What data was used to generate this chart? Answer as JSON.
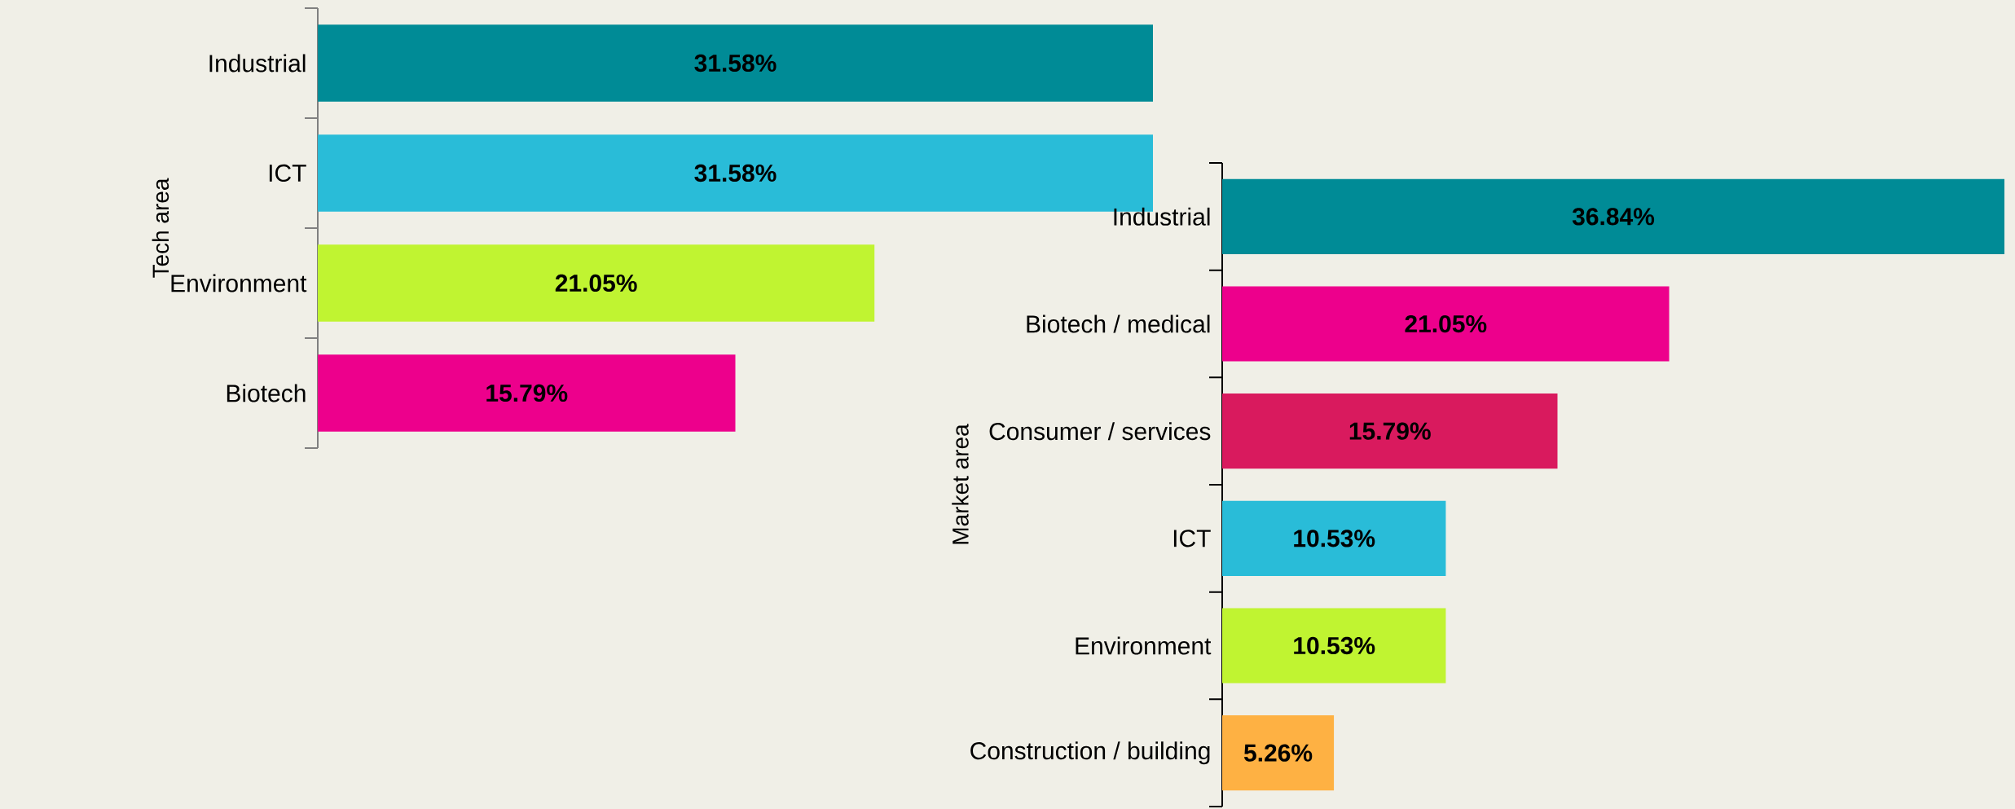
{
  "chart_data": [
    {
      "type": "bar",
      "orientation": "horizontal",
      "ylabel": "Tech area",
      "categories": [
        "Industrial",
        "ICT",
        "Environment",
        "Biotech"
      ],
      "values": [
        31.58,
        31.58,
        21.05,
        15.79
      ],
      "value_labels": [
        "31.58%",
        "31.58%",
        "21.05%",
        "15.79%"
      ],
      "colors": [
        "#008b96",
        "#29bcd8",
        "#c0f431",
        "#ed008c"
      ],
      "tick_labels": "y"
    },
    {
      "type": "bar",
      "orientation": "horizontal",
      "ylabel": "Market area",
      "categories": [
        "Industrial",
        "Biotech / medical",
        "Consumer / services",
        "ICT",
        "Environment",
        "Construction / building"
      ],
      "values": [
        36.84,
        21.05,
        15.79,
        10.53,
        10.53,
        5.26
      ],
      "value_labels": [
        "36.84%",
        "21.05%",
        "15.79%",
        "10.53%",
        "10.53%",
        "5.26%"
      ],
      "colors": [
        "#008b96",
        "#ed008c",
        "#d91a5e",
        "#29bcd8",
        "#c0f431",
        "#feb143"
      ],
      "tick_labels": "y"
    }
  ]
}
